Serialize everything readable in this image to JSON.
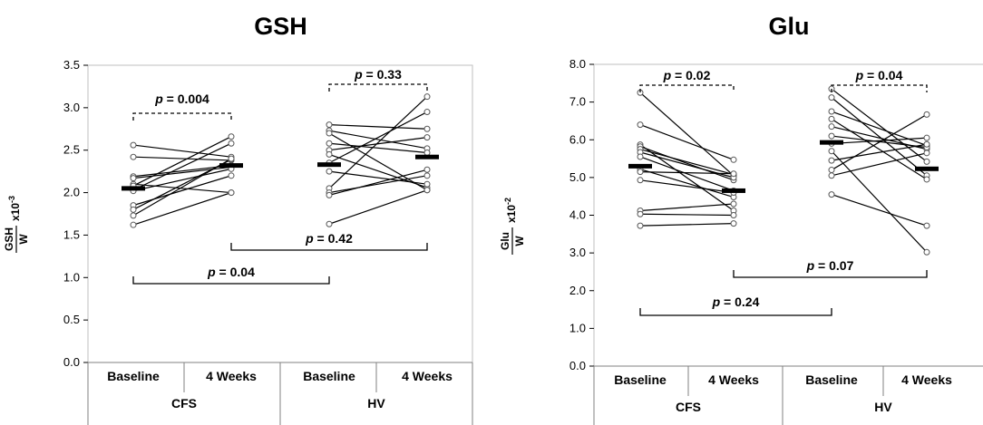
{
  "chart_data": [
    {
      "type": "scatter",
      "title": "GSH",
      "ylabel": {
        "num": "GSH",
        "den": "W",
        "scale": "x10",
        "exp": "-3"
      },
      "ylim": [
        0,
        3.5
      ],
      "yticks": [
        "0.0",
        "0.5",
        "1.0",
        "1.5",
        "2.0",
        "2.5",
        "3.0",
        "3.5"
      ],
      "categories": [
        "Baseline",
        "4 Weeks",
        "Baseline",
        "4 Weeks"
      ],
      "groups": [
        "CFS",
        "HV"
      ],
      "means": [
        2.05,
        2.32,
        2.33,
        2.42
      ],
      "series": [
        {
          "name": "CFS",
          "baseline": [
            2.56,
            2.42,
            2.19,
            2.17,
            2.1,
            2.08,
            2.03,
            2.02,
            1.85,
            1.8,
            1.73,
            1.62
          ],
          "week4": [
            2.42,
            2.38,
            2.32,
            2.3,
            2.0,
            2.66,
            2.58,
            2.28,
            2.2,
            2.39,
            2.4,
            2.0
          ]
        },
        {
          "name": "HV",
          "baseline": [
            2.8,
            2.73,
            2.7,
            2.58,
            2.5,
            2.45,
            2.35,
            2.25,
            2.05,
            2.0,
            1.97,
            1.63
          ],
          "week4": [
            2.75,
            2.52,
            2.03,
            2.47,
            2.65,
            2.06,
            2.95,
            2.1,
            3.13,
            2.2,
            2.27,
            2.03
          ]
        }
      ],
      "comparisons": [
        {
          "label": "p = 0.004",
          "prefix": "p",
          "value": " = 0.004",
          "style": "dashed"
        },
        {
          "label": "p = 0.33",
          "prefix": "p",
          "value": " = 0.33",
          "style": "dashed"
        },
        {
          "label": "p = 0.42",
          "prefix": "p",
          "value": " = 0.42",
          "style": "solid"
        },
        {
          "label": "p = 0.04",
          "prefix": "p",
          "value": " = 0.04",
          "style": "solid"
        }
      ]
    },
    {
      "type": "scatter",
      "title": "Glu",
      "ylabel": {
        "num": "Glu",
        "den": "W",
        "scale": "x10",
        "exp": "-2"
      },
      "ylim": [
        0,
        8.0
      ],
      "yticks": [
        "0.0",
        "1.0",
        "2.0",
        "3.0",
        "4.0",
        "5.0",
        "6.0",
        "7.0",
        "8.0"
      ],
      "categories": [
        "Baseline",
        "4 Weeks",
        "Baseline",
        "4 Weeks"
      ],
      "groups": [
        "CFS",
        "HV"
      ],
      "means": [
        5.3,
        4.65,
        5.93,
        5.23
      ],
      "series": [
        {
          "name": "CFS",
          "baseline": [
            7.25,
            6.4,
            5.87,
            5.82,
            5.75,
            5.67,
            5.55,
            5.22,
            5.15,
            4.93,
            4.12,
            4.03,
            3.72
          ],
          "week4": [
            5.05,
            5.47,
            4.12,
            4.93,
            5.08,
            5.0,
            4.65,
            4.48,
            5.1,
            4.6,
            4.3,
            4.0,
            3.78
          ]
        },
        {
          "name": "HV",
          "baseline": [
            7.35,
            7.12,
            6.75,
            6.55,
            6.35,
            6.1,
            5.9,
            5.7,
            5.45,
            5.2,
            5.05,
            4.55
          ],
          "week4": [
            5.42,
            5.05,
            5.85,
            4.95,
            5.75,
            5.8,
            6.05,
            3.02,
            5.88,
            6.67,
            5.65,
            3.72
          ]
        }
      ],
      "comparisons": [
        {
          "label": "p = 0.02",
          "prefix": "p",
          "value": " = 0.02",
          "style": "dashed"
        },
        {
          "label": "p = 0.04",
          "prefix": "p",
          "value": " = 0.04",
          "style": "dashed"
        },
        {
          "label": "p = 0.07",
          "prefix": "p",
          "value": " = 0.07",
          "style": "solid"
        },
        {
          "label": "p = 0.24",
          "prefix": "p",
          "value": " = 0.24",
          "style": "solid"
        }
      ]
    }
  ]
}
